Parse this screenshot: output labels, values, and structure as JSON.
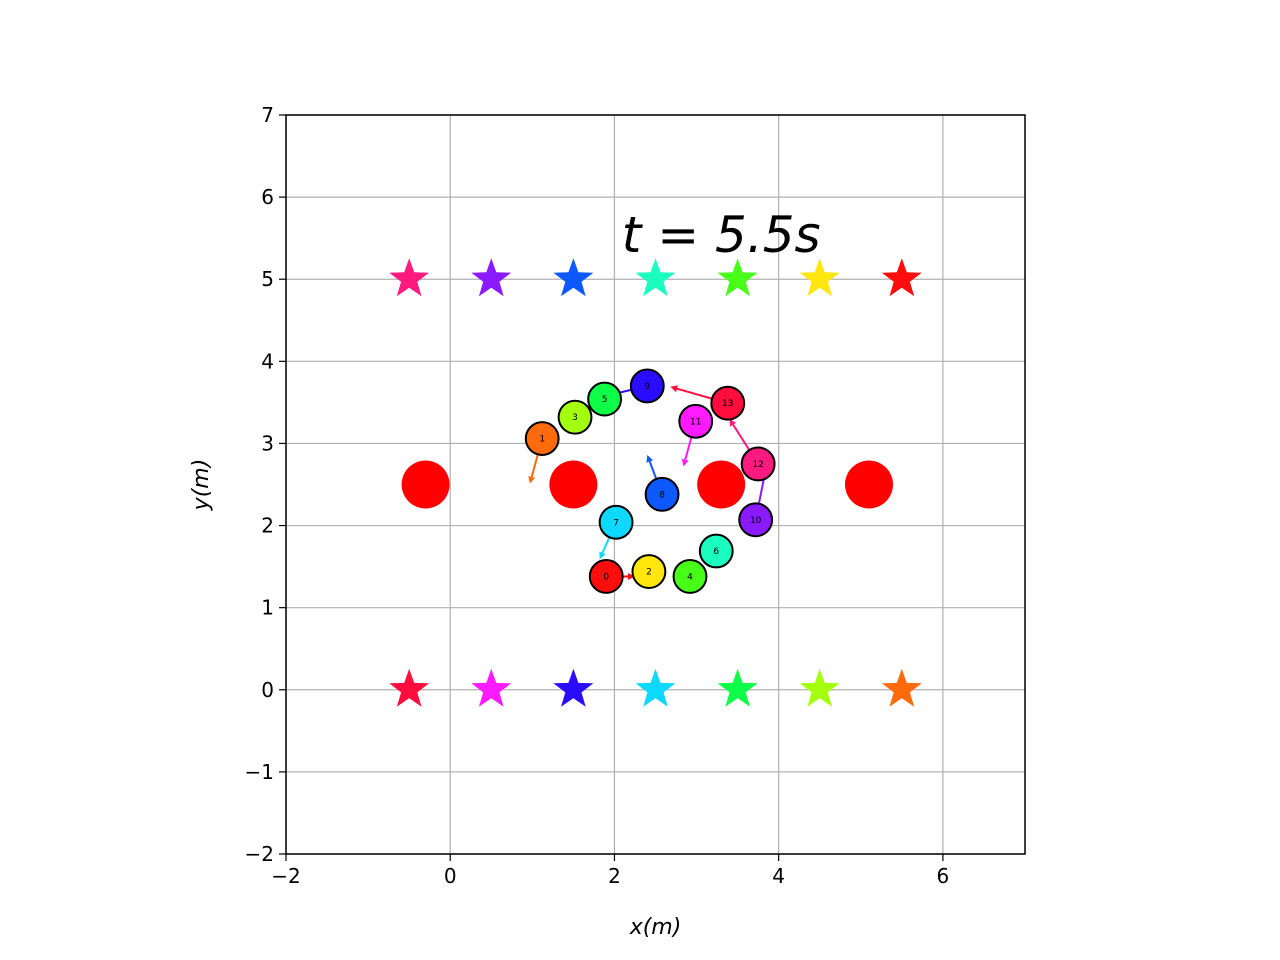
{
  "chart_data": {
    "type": "scatter",
    "title": "",
    "annotation": {
      "text": "t = 5.5s",
      "x": 3.3,
      "y": 5.55
    },
    "xlabel": "x(m)",
    "ylabel": "y(m)",
    "xlim": [
      -2,
      7
    ],
    "ylim": [
      -2,
      7
    ],
    "xticks": [
      -2,
      0,
      2,
      4,
      6
    ],
    "yticks": [
      -2,
      -1,
      0,
      1,
      2,
      3,
      4,
      5,
      6,
      7
    ],
    "grid": true,
    "obstacles": [
      {
        "x": -0.3,
        "y": 2.5,
        "color": "#ff0000"
      },
      {
        "x": 1.5,
        "y": 2.5,
        "color": "#ff0000"
      },
      {
        "x": 3.3,
        "y": 2.5,
        "color": "#ff0000"
      },
      {
        "x": 5.1,
        "y": 2.5,
        "color": "#ff0000"
      }
    ],
    "goals_top": [
      {
        "x": -0.5,
        "y": 5,
        "color": "#ff1a80"
      },
      {
        "x": 0.5,
        "y": 5,
        "color": "#8a1aff"
      },
      {
        "x": 1.5,
        "y": 5,
        "color": "#0d59ff"
      },
      {
        "x": 2.5,
        "y": 5,
        "color": "#1affc0"
      },
      {
        "x": 3.5,
        "y": 5,
        "color": "#48ff1a"
      },
      {
        "x": 4.5,
        "y": 5,
        "color": "#ffe60d"
      },
      {
        "x": 5.5,
        "y": 5,
        "color": "#ff0d0d"
      }
    ],
    "goals_bottom": [
      {
        "x": -0.5,
        "y": 0,
        "color": "#ff0d3d"
      },
      {
        "x": 0.5,
        "y": 0,
        "color": "#ff1aff"
      },
      {
        "x": 1.5,
        "y": 0,
        "color": "#2a0dff"
      },
      {
        "x": 2.5,
        "y": 0,
        "color": "#0dd9ff"
      },
      {
        "x": 3.5,
        "y": 0,
        "color": "#0dff48"
      },
      {
        "x": 4.5,
        "y": 0,
        "color": "#a3ff0d"
      },
      {
        "x": 5.5,
        "y": 0,
        "color": "#ff6a0d"
      }
    ],
    "agents": [
      {
        "id": "0",
        "x": 1.9,
        "y": 1.38,
        "color": "#ff0d0d",
        "vx": 0.35,
        "vy": 0.0
      },
      {
        "id": "1",
        "x": 1.12,
        "y": 3.06,
        "color": "#ff6a0d",
        "vx": -0.15,
        "vy": -0.55
      },
      {
        "id": "2",
        "x": 2.42,
        "y": 1.44,
        "color": "#ffe60d",
        "vx": 0.0,
        "vy": 0.0
      },
      {
        "id": "3",
        "x": 1.52,
        "y": 3.32,
        "color": "#a3ff0d",
        "vx": 0.0,
        "vy": 0.0
      },
      {
        "id": "4",
        "x": 2.92,
        "y": 1.38,
        "color": "#48ff1a",
        "vx": 0.0,
        "vy": 0.0
      },
      {
        "id": "5",
        "x": 1.88,
        "y": 3.54,
        "color": "#0dff48",
        "vx": 0.0,
        "vy": 0.0
      },
      {
        "id": "6",
        "x": 3.24,
        "y": 1.69,
        "color": "#1affc0",
        "vx": 0.0,
        "vy": 0.0
      },
      {
        "id": "7",
        "x": 2.02,
        "y": 2.04,
        "color": "#0dd9ff",
        "vx": -0.2,
        "vy": -0.45
      },
      {
        "id": "8",
        "x": 2.58,
        "y": 2.38,
        "color": "#0d59ff",
        "vx": -0.18,
        "vy": 0.48
      },
      {
        "id": "9",
        "x": 2.4,
        "y": 3.7,
        "color": "#2a0dff",
        "vx": -0.5,
        "vy": -0.12
      },
      {
        "id": "10",
        "x": 3.72,
        "y": 2.07,
        "color": "#8a1aff",
        "vx": 0.12,
        "vy": 0.6
      },
      {
        "id": "11",
        "x": 2.99,
        "y": 3.27,
        "color": "#ff1aff",
        "vx": -0.15,
        "vy": -0.55
      },
      {
        "id": "12",
        "x": 3.75,
        "y": 2.75,
        "color": "#ff1a80",
        "vx": -0.35,
        "vy": 0.55
      },
      {
        "id": "13",
        "x": 3.38,
        "y": 3.49,
        "color": "#ff0d3d",
        "vx": -0.7,
        "vy": 0.2
      }
    ]
  }
}
